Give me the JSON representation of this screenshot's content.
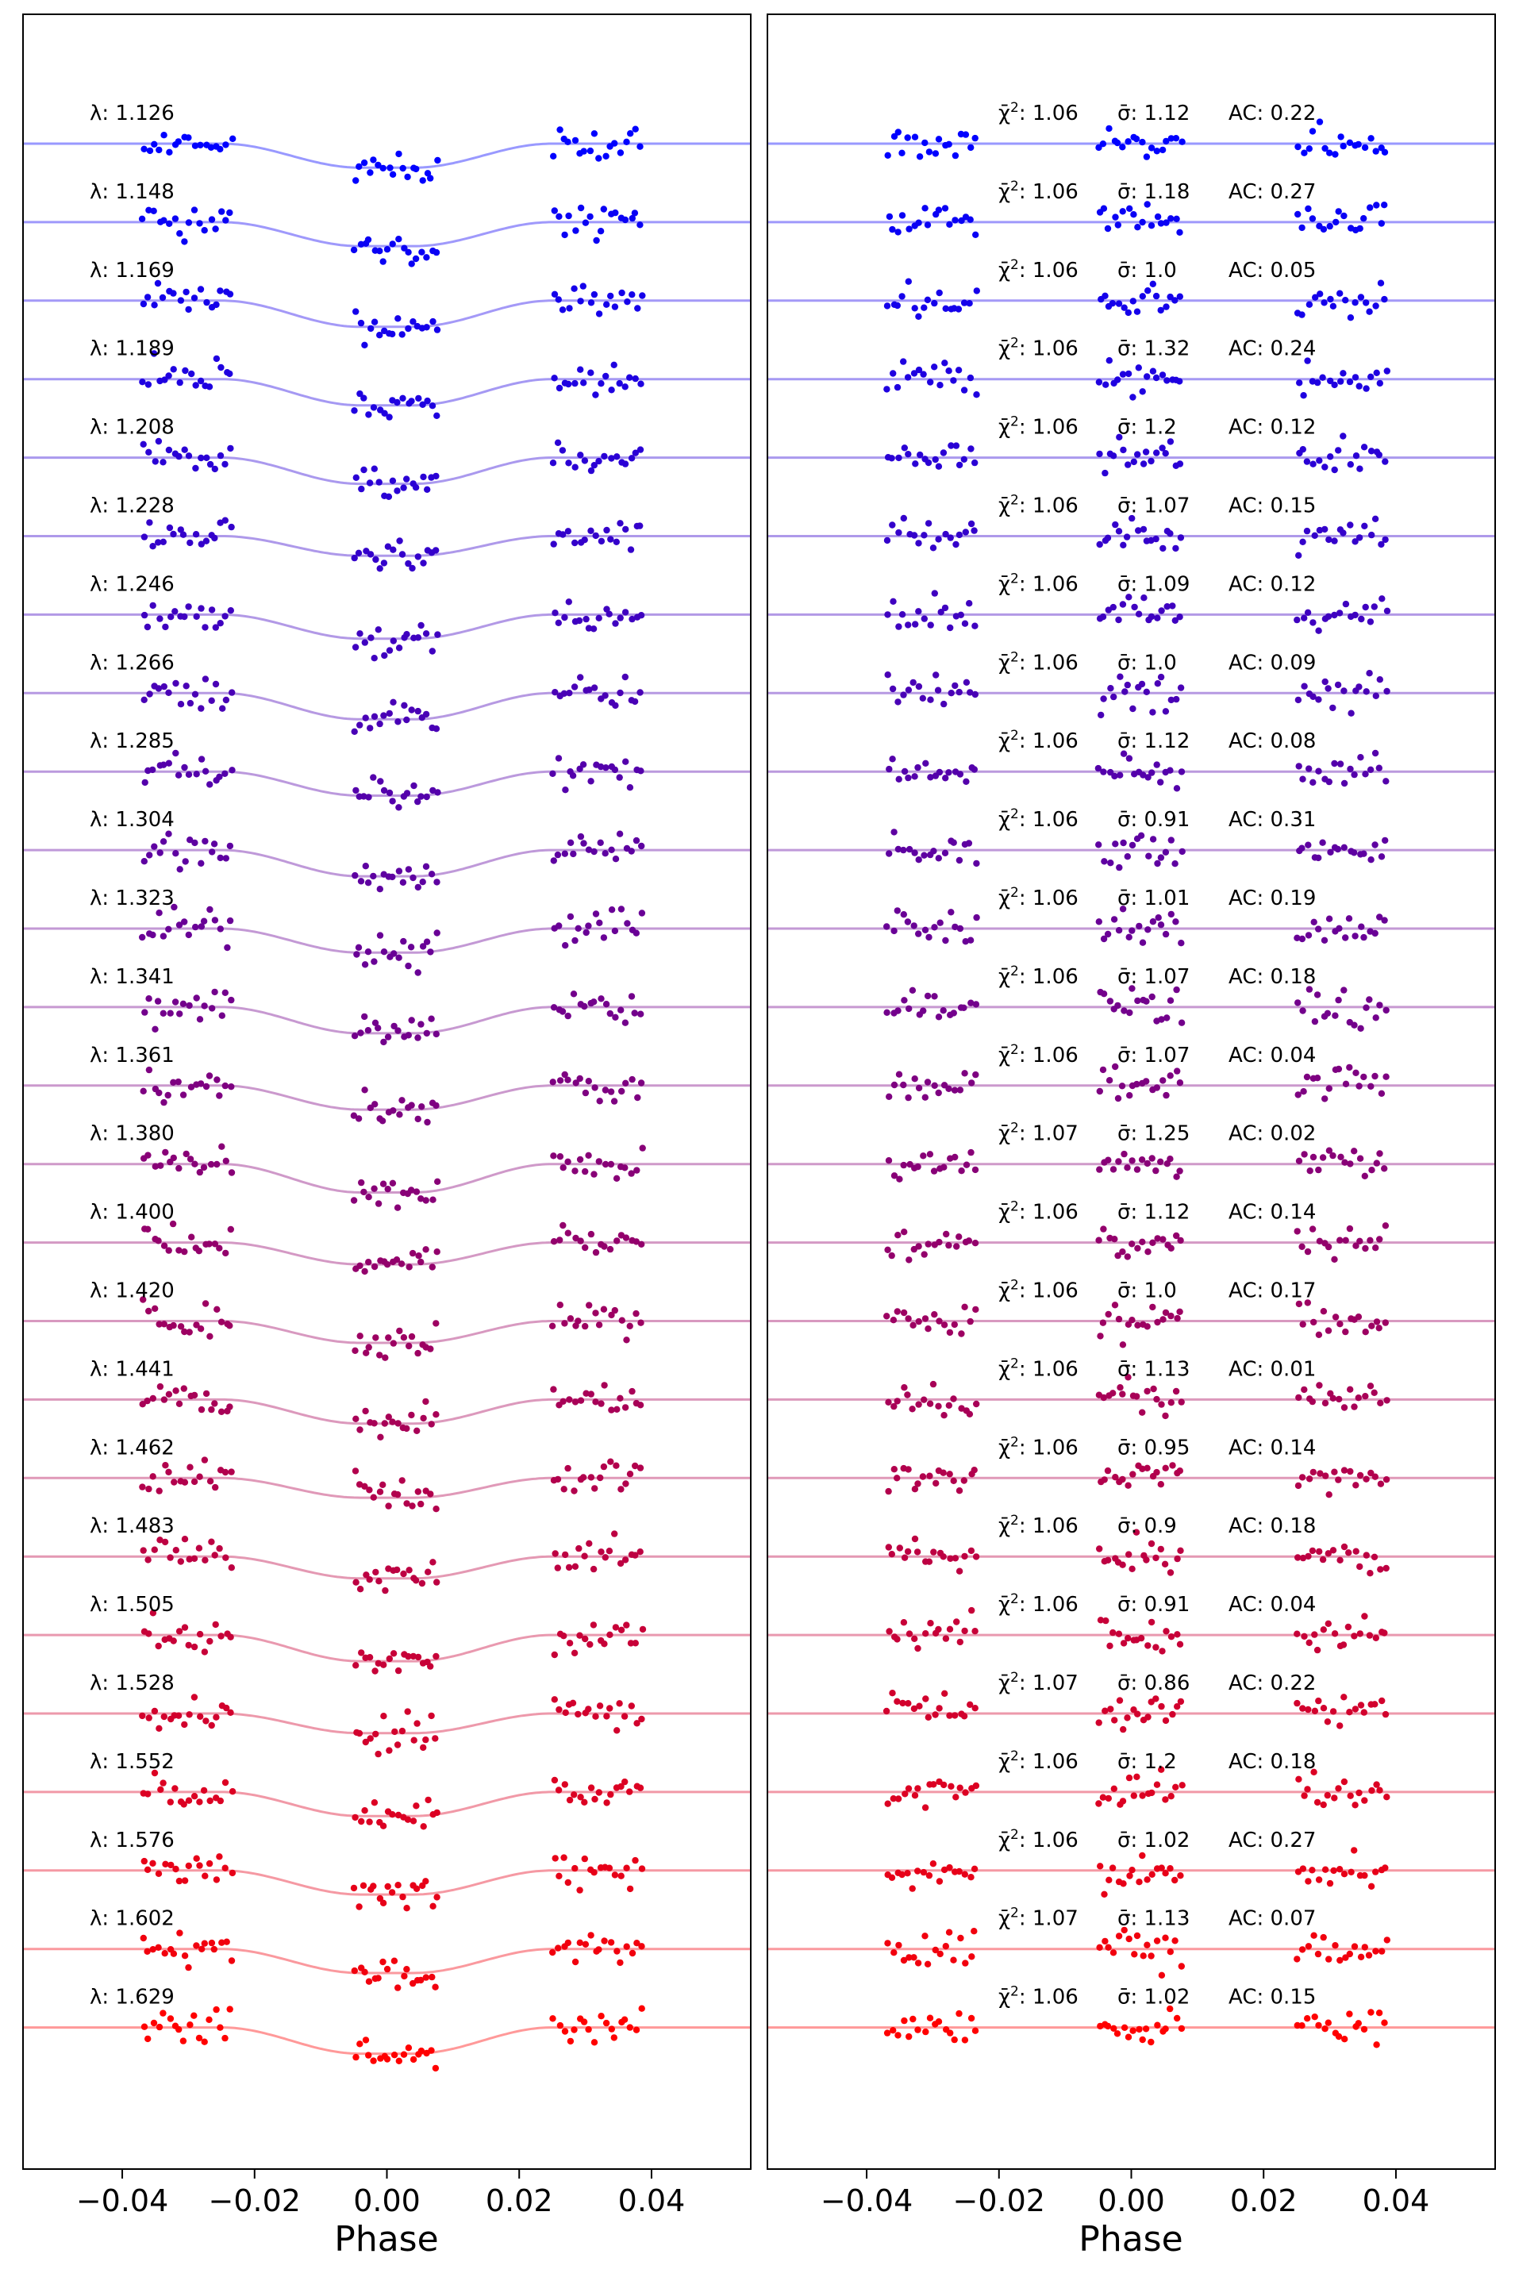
{
  "figure": {
    "panels": [
      {
        "xlabel": "Phase",
        "xticks": [
          -0.04,
          -0.02,
          0.0,
          0.02,
          0.04
        ],
        "xtick_labels": [
          "−0.04",
          "−0.02",
          "0.00",
          "0.02",
          "0.04"
        ]
      },
      {
        "xlabel": "Phase",
        "xticks": [
          -0.04,
          -0.02,
          0.0,
          0.02,
          0.04
        ],
        "xtick_labels": [
          "−0.04",
          "−0.02",
          "0.00",
          "0.02",
          "0.04"
        ]
      }
    ]
  },
  "chart_data": [
    {
      "type": "scatter",
      "title": "",
      "xlabel": "Phase",
      "ylabel": "",
      "xlim": [
        -0.055,
        0.055
      ],
      "grid": false,
      "description_free": true,
      "observation_windows": [
        [
          -0.037,
          -0.023
        ],
        [
          -0.005,
          0.008
        ],
        [
          0.025,
          0.039
        ]
      ],
      "transit_model": {
        "center": 0.0,
        "depth_scale": 1.0
      },
      "series": [
        {
          "label": "λ: 1.126",
          "color": "#0000ff",
          "model_color": "#9999ff",
          "transit_depth": 0.55
        },
        {
          "label": "λ: 1.148",
          "color": "#0a00f4",
          "model_color": "#9f99fb",
          "transit_depth": 0.55
        },
        {
          "label": "λ: 1.169",
          "color": "#1500ea",
          "model_color": "#a499f7",
          "transit_depth": 0.6
        },
        {
          "label": "λ: 1.189",
          "color": "#1f00e0",
          "model_color": "#a599f3",
          "transit_depth": 0.6
        },
        {
          "label": "λ: 1.208",
          "color": "#2a00d5",
          "model_color": "#aa99ee",
          "transit_depth": 0.6
        },
        {
          "label": "λ: 1.228",
          "color": "#3400cb",
          "model_color": "#ae99ea",
          "transit_depth": 0.45
        },
        {
          "label": "λ: 1.246",
          "color": "#3f00c0",
          "model_color": "#b299e6",
          "transit_depth": 0.55
        },
        {
          "label": "λ: 1.266",
          "color": "#4900b6",
          "model_color": "#b699e2",
          "transit_depth": 0.6
        },
        {
          "label": "λ: 1.285",
          "color": "#5400ab",
          "model_color": "#bb99dd",
          "transit_depth": 0.55
        },
        {
          "label": "λ: 1.304",
          "color": "#5e00a1",
          "model_color": "#bf99d9",
          "transit_depth": 0.6
        },
        {
          "label": "λ: 1.323",
          "color": "#690096",
          "model_color": "#c399d5",
          "transit_depth": 0.55
        },
        {
          "label": "λ: 1.341",
          "color": "#73008c",
          "model_color": "#c799d1",
          "transit_depth": 0.6
        },
        {
          "label": "λ: 1.361",
          "color": "#7e0081",
          "model_color": "#cb99cd",
          "transit_depth": 0.55
        },
        {
          "label": "λ: 1.380",
          "color": "#880077",
          "model_color": "#cf99c9",
          "transit_depth": 0.65
        },
        {
          "label": "λ: 1.400",
          "color": "#93006c",
          "model_color": "#d499c4",
          "transit_depth": 0.5
        },
        {
          "label": "λ: 1.420",
          "color": "#9d0062",
          "model_color": "#d899c0",
          "transit_depth": 0.5
        },
        {
          "label": "λ: 1.441",
          "color": "#a80057",
          "model_color": "#dc99bc",
          "transit_depth": 0.55
        },
        {
          "label": "λ: 1.462",
          "color": "#b2004d",
          "model_color": "#e099b8",
          "transit_depth": 0.45
        },
        {
          "label": "λ: 1.483",
          "color": "#bd0042",
          "model_color": "#e499b3",
          "transit_depth": 0.5
        },
        {
          "label": "λ: 1.505",
          "color": "#c70038",
          "model_color": "#e999af",
          "transit_depth": 0.6
        },
        {
          "label": "λ: 1.528",
          "color": "#d2002d",
          "model_color": "#ed99ab",
          "transit_depth": 0.45
        },
        {
          "label": "λ: 1.552",
          "color": "#dc0023",
          "model_color": "#f199a7",
          "transit_depth": 0.55
        },
        {
          "label": "λ: 1.576",
          "color": "#e70018",
          "model_color": "#f599a3",
          "transit_depth": 0.55
        },
        {
          "label": "λ: 1.602",
          "color": "#f1000e",
          "model_color": "#fa999e",
          "transit_depth": 0.55
        },
        {
          "label": "λ: 1.629",
          "color": "#ff0000",
          "model_color": "#ff9999",
          "transit_depth": 0.6
        }
      ]
    },
    {
      "type": "scatter",
      "title": "",
      "xlabel": "Phase",
      "ylabel": "",
      "xlim": [
        -0.055,
        0.055
      ],
      "grid": false,
      "observation_windows": [
        [
          -0.037,
          -0.023
        ],
        [
          -0.005,
          0.008
        ],
        [
          0.025,
          0.039
        ]
      ],
      "series": [
        {
          "chi2": "1.06",
          "sigma": "1.12",
          "ac": "0.22",
          "color": "#0000ff",
          "model_color": "#9999ff"
        },
        {
          "chi2": "1.06",
          "sigma": "1.18",
          "ac": "0.27",
          "color": "#0a00f4",
          "model_color": "#9f99fb"
        },
        {
          "chi2": "1.06",
          "sigma": "1.0",
          "ac": "0.05",
          "color": "#1500ea",
          "model_color": "#a499f7"
        },
        {
          "chi2": "1.06",
          "sigma": "1.32",
          "ac": "0.24",
          "color": "#1f00e0",
          "model_color": "#a599f3"
        },
        {
          "chi2": "1.06",
          "sigma": "1.2",
          "ac": "0.12",
          "color": "#2a00d5",
          "model_color": "#aa99ee"
        },
        {
          "chi2": "1.06",
          "sigma": "1.07",
          "ac": "0.15",
          "color": "#3400cb",
          "model_color": "#ae99ea"
        },
        {
          "chi2": "1.06",
          "sigma": "1.09",
          "ac": "0.12",
          "color": "#3f00c0",
          "model_color": "#b299e6"
        },
        {
          "chi2": "1.06",
          "sigma": "1.0",
          "ac": "0.09",
          "color": "#4900b6",
          "model_color": "#b699e2"
        },
        {
          "chi2": "1.06",
          "sigma": "1.12",
          "ac": "0.08",
          "color": "#5400ab",
          "model_color": "#bb99dd"
        },
        {
          "chi2": "1.06",
          "sigma": "0.91",
          "ac": "0.31",
          "color": "#5e00a1",
          "model_color": "#bf99d9"
        },
        {
          "chi2": "1.06",
          "sigma": "1.01",
          "ac": "0.19",
          "color": "#690096",
          "model_color": "#c399d5"
        },
        {
          "chi2": "1.06",
          "sigma": "1.07",
          "ac": "0.18",
          "color": "#73008c",
          "model_color": "#c799d1"
        },
        {
          "chi2": "1.06",
          "sigma": "1.07",
          "ac": "0.04",
          "color": "#7e0081",
          "model_color": "#cb99cd"
        },
        {
          "chi2": "1.07",
          "sigma": "1.25",
          "ac": "0.02",
          "color": "#880077",
          "model_color": "#cf99c9"
        },
        {
          "chi2": "1.06",
          "sigma": "1.12",
          "ac": "0.14",
          "color": "#93006c",
          "model_color": "#d499c4"
        },
        {
          "chi2": "1.06",
          "sigma": "1.0",
          "ac": "0.17",
          "color": "#9d0062",
          "model_color": "#d899c0"
        },
        {
          "chi2": "1.06",
          "sigma": "1.13",
          "ac": "0.01",
          "color": "#a80057",
          "model_color": "#dc99bc"
        },
        {
          "chi2": "1.06",
          "sigma": "0.95",
          "ac": "0.14",
          "color": "#b2004d",
          "model_color": "#e099b8"
        },
        {
          "chi2": "1.06",
          "sigma": "0.9",
          "ac": "0.18",
          "color": "#bd0042",
          "model_color": "#e499b3"
        },
        {
          "chi2": "1.06",
          "sigma": "0.91",
          "ac": "0.04",
          "color": "#c70038",
          "model_color": "#e999af"
        },
        {
          "chi2": "1.07",
          "sigma": "0.86",
          "ac": "0.22",
          "color": "#d2002d",
          "model_color": "#ed99ab"
        },
        {
          "chi2": "1.06",
          "sigma": "1.2",
          "ac": "0.18",
          "color": "#dc0023",
          "model_color": "#f199a7"
        },
        {
          "chi2": "1.06",
          "sigma": "1.02",
          "ac": "0.27",
          "color": "#e70018",
          "model_color": "#f599a3"
        },
        {
          "chi2": "1.07",
          "sigma": "1.13",
          "ac": "0.07",
          "color": "#f1000e",
          "model_color": "#fa999e"
        },
        {
          "chi2": "1.06",
          "sigma": "1.02",
          "ac": "0.15",
          "color": "#ff0000",
          "model_color": "#ff9999"
        }
      ]
    }
  ]
}
